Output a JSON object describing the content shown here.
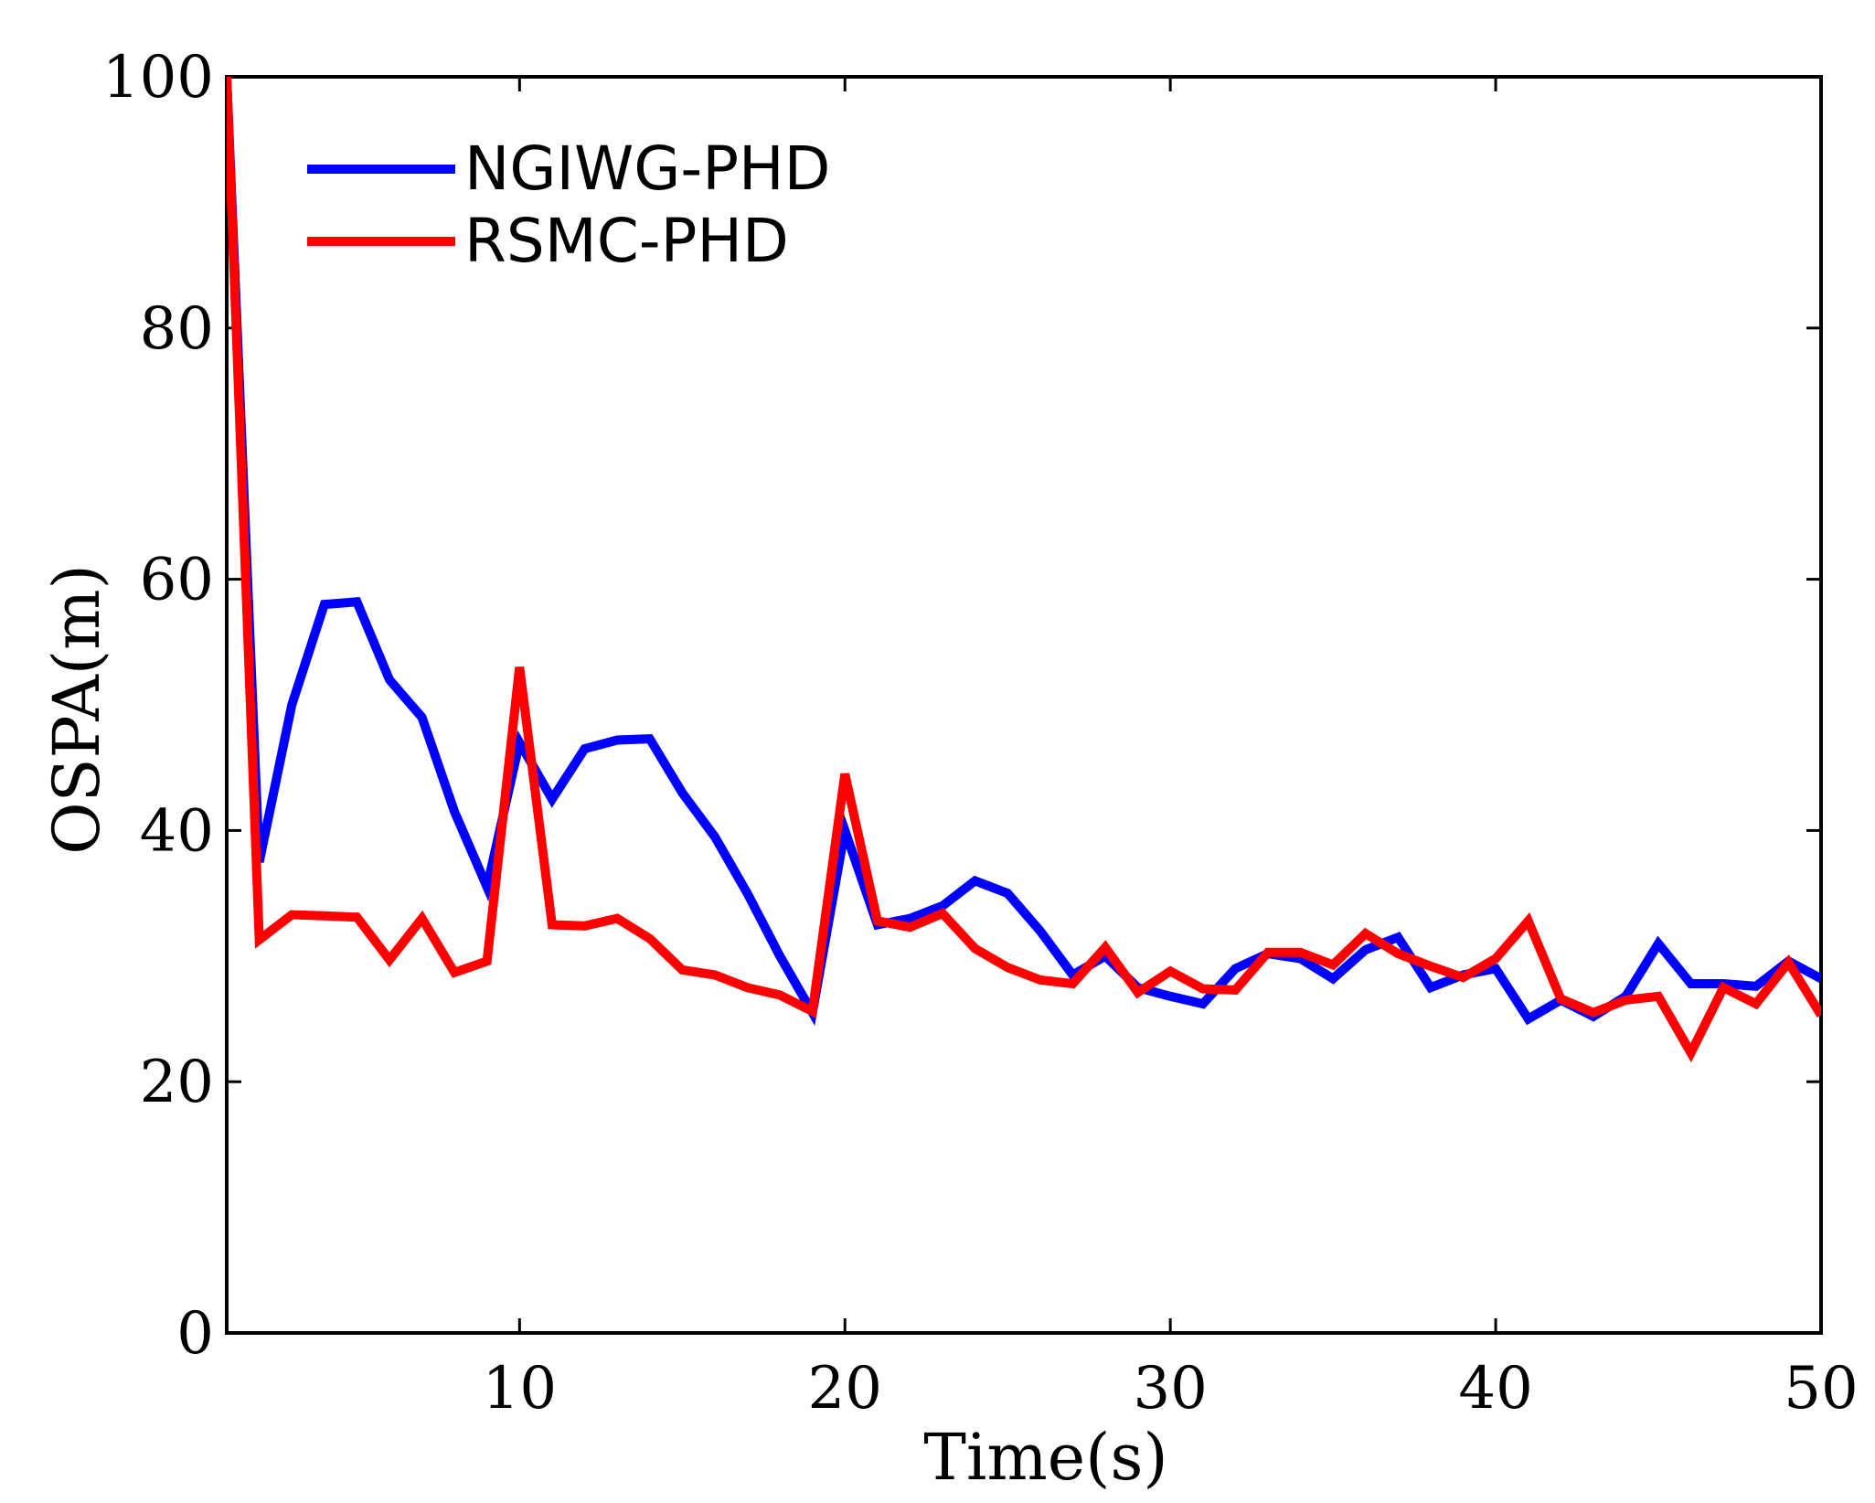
{
  "chart_data": {
    "type": "line",
    "title": "",
    "xlabel": "Time(s)",
    "ylabel": "OSPA(m)",
    "xlim": [
      1,
      50
    ],
    "ylim": [
      0,
      100
    ],
    "xticks": [
      10,
      20,
      30,
      40,
      50
    ],
    "yticks": [
      0,
      20,
      40,
      60,
      80,
      100
    ],
    "grid": false,
    "legend_position": "top-left",
    "x": [
      1,
      2,
      3,
      4,
      5,
      6,
      7,
      8,
      9,
      10,
      11,
      12,
      13,
      14,
      15,
      16,
      17,
      18,
      19,
      20,
      21,
      22,
      23,
      24,
      25,
      26,
      27,
      28,
      29,
      30,
      31,
      32,
      33,
      34,
      35,
      36,
      37,
      38,
      39,
      40,
      41,
      42,
      43,
      44,
      45,
      46,
      47,
      48,
      49,
      50
    ],
    "series": [
      {
        "name": "NGIWG-PHD",
        "color": "#0000ff",
        "values": [
          100,
          37.5,
          50,
          58,
          58.2,
          52,
          49,
          41.5,
          35.5,
          47,
          42.5,
          46.5,
          47.2,
          47.3,
          43,
          39.5,
          35,
          30,
          25.5,
          40,
          32.5,
          33,
          34,
          36,
          35,
          32,
          28.5,
          30,
          27.5,
          26.8,
          26.2,
          29,
          30.2,
          29.8,
          28.2,
          30.5,
          31.5,
          27.5,
          28.5,
          29,
          25,
          26.5,
          25.2,
          26.8,
          31,
          27.8,
          27.8,
          27.6,
          29.6,
          28.2
        ]
      },
      {
        "name": "RSMC-PHD",
        "color": "#ff0000",
        "values": [
          100,
          31.3,
          33.3,
          33.2,
          33.1,
          29.7,
          33,
          28.7,
          29.6,
          53,
          32.5,
          32.4,
          33,
          31.4,
          28.9,
          28.5,
          27.5,
          26.9,
          25.6,
          44.5,
          32.8,
          32.3,
          33.4,
          30.6,
          29.1,
          28.1,
          27.8,
          30.7,
          27.1,
          28.8,
          27.4,
          27.3,
          30.3,
          30.3,
          29.3,
          31.8,
          30.2,
          29.2,
          28.3,
          29.8,
          32.8,
          26.6,
          25.5,
          26.5,
          26.8,
          22.3,
          27.5,
          26.2,
          29.5,
          25.3
        ]
      }
    ]
  }
}
